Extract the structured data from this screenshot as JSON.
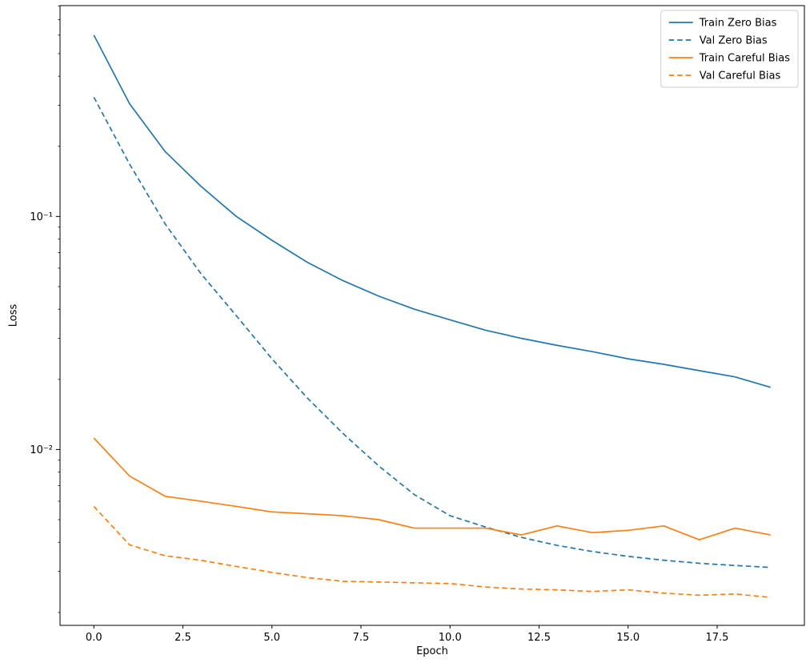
{
  "figure": {
    "xlabel": "Epoch",
    "ylabel": "Loss",
    "background": "#ffffff"
  },
  "chart_data": {
    "type": "line",
    "title": "",
    "xlabel": "Epoch",
    "ylabel": "Loss",
    "yscale": "log",
    "grid": false,
    "legend_position": "upper right",
    "xlim": [
      -0.95,
      19.95
    ],
    "ylim": [
      0.00176,
      0.803
    ],
    "x_ticks": {
      "values": [
        0,
        2.5,
        5,
        7.5,
        10,
        12.5,
        15,
        17.5
      ],
      "labels": [
        "0.0",
        "2.5",
        "5.0",
        "7.5",
        "10.0",
        "12.5",
        "15.0",
        "17.5"
      ]
    },
    "y_ticks": {
      "values": [
        0.1,
        0.01
      ],
      "labels": [
        "10⁻¹",
        "10⁻²"
      ]
    },
    "x": [
      0,
      1,
      2,
      3,
      4,
      5,
      6,
      7,
      8,
      9,
      10,
      11,
      12,
      13,
      14,
      15,
      16,
      17,
      18,
      19
    ],
    "series": [
      {
        "name": "Train Zero Bias",
        "color": "#1f77b4",
        "style": "solid",
        "values": [
          0.6,
          0.305,
          0.19,
          0.135,
          0.1,
          0.079,
          0.0635,
          0.053,
          0.0455,
          0.04,
          0.036,
          0.0325,
          0.03,
          0.028,
          0.0263,
          0.0245,
          0.0232,
          0.0218,
          0.0205,
          0.0185
        ]
      },
      {
        "name": "Val Zero Bias",
        "color": "#1f77b4",
        "style": "dashed",
        "values": [
          0.325,
          0.168,
          0.093,
          0.057,
          0.0375,
          0.0245,
          0.0166,
          0.0117,
          0.0085,
          0.0064,
          0.0052,
          0.00465,
          0.0042,
          0.00388,
          0.00365,
          0.00348,
          0.00335,
          0.00325,
          0.00318,
          0.00312
        ]
      },
      {
        "name": "Train Careful Bias",
        "color": "#ff7f0e",
        "style": "solid",
        "values": [
          0.0112,
          0.0077,
          0.0063,
          0.006,
          0.0057,
          0.0054,
          0.0053,
          0.0052,
          0.005,
          0.0046,
          0.0046,
          0.0046,
          0.0043,
          0.0047,
          0.0044,
          0.0045,
          0.0047,
          0.0041,
          0.0046,
          0.0043
        ]
      },
      {
        "name": "Val Careful Bias",
        "color": "#ff7f0e",
        "style": "dashed",
        "values": [
          0.0057,
          0.0039,
          0.0035,
          0.00335,
          0.00315,
          0.00297,
          0.00282,
          0.00272,
          0.0027,
          0.00268,
          0.00266,
          0.00257,
          0.00252,
          0.0025,
          0.00246,
          0.0025,
          0.00242,
          0.00237,
          0.0024,
          0.00232
        ]
      }
    ]
  }
}
